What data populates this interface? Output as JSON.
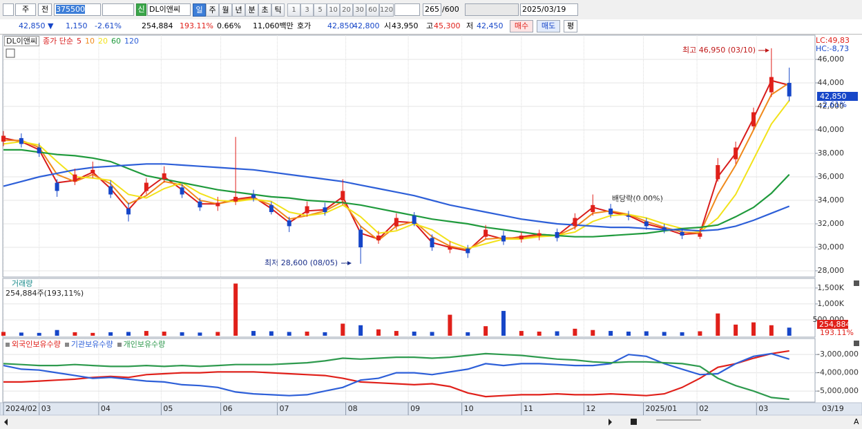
{
  "toolbar": {
    "market": "주",
    "prev": "전",
    "code": "375500",
    "badge": "신",
    "name": "DL이앤씨",
    "periods": [
      "일",
      "주",
      "월",
      "년",
      "분",
      "초",
      "틱"
    ],
    "intervals": [
      "1",
      "3",
      "5",
      "10",
      "20",
      "30",
      "60",
      "120"
    ],
    "count": "265",
    "max_count": "/600",
    "date": "2025/03/19"
  },
  "info_bar": {
    "price": "42,850 ▼",
    "change": "1,150",
    "change_rate": "-2.61%",
    "volume": "254,884",
    "volume_rate": "193.11%",
    "turnover": "0.66%",
    "amount": "11,060백만",
    "quote_label": "호가",
    "ask": "42,850",
    "bid": "42,800",
    "open_label": "시",
    "open": "43,950",
    "high_label": "고",
    "high": "45,300",
    "low_label": "저",
    "low": "42,450",
    "buy": "매수",
    "sell": "매도",
    "avg": "평"
  },
  "chart_data": [
    {
      "type": "candlestick",
      "title": "DL이앤씨",
      "ma_label": "종가 단순",
      "up_color": "#e0201a",
      "down_color": "#1646c8",
      "x": [
        0,
        6,
        12,
        18,
        24,
        30,
        36,
        42,
        48,
        54,
        60,
        66,
        72,
        78,
        84,
        90,
        96,
        102,
        108,
        114,
        120,
        126,
        132,
        138,
        144,
        150,
        156,
        162,
        168,
        174,
        180,
        186,
        192,
        198,
        204,
        210,
        216,
        222,
        228,
        234,
        240,
        246,
        252,
        258,
        264
      ],
      "open": [
        39000,
        39300,
        38500,
        35500,
        35600,
        36300,
        35200,
        33300,
        34800,
        35800,
        35100,
        33900,
        33500,
        33900,
        34500,
        33600,
        32300,
        32900,
        33400,
        34000,
        31500,
        30600,
        31800,
        32700,
        30800,
        29800,
        29900,
        30900,
        31000,
        30700,
        31000,
        31300,
        31800,
        33000,
        33300,
        32700,
        32200,
        31700,
        31300,
        30900,
        35800,
        37500,
        40300,
        43200,
        44000
      ],
      "high": [
        39900,
        39700,
        38900,
        35800,
        36700,
        37300,
        35700,
        33800,
        35900,
        36900,
        35400,
        34200,
        34300,
        39400,
        34900,
        33900,
        32600,
        33900,
        33800,
        35800,
        31800,
        31400,
        32900,
        33000,
        31100,
        30500,
        30200,
        31900,
        31400,
        31300,
        31500,
        31600,
        32900,
        34500,
        33700,
        33100,
        32500,
        32000,
        31600,
        31600,
        37600,
        39000,
        41900,
        46950,
        45300
      ],
      "low": [
        38600,
        38500,
        37700,
        34300,
        35300,
        35900,
        34200,
        32200,
        34500,
        35500,
        34200,
        33100,
        33100,
        33600,
        33900,
        32800,
        31300,
        32600,
        32700,
        33600,
        28600,
        30300,
        31500,
        31800,
        29700,
        29500,
        29100,
        30700,
        30200,
        30400,
        30600,
        30500,
        31500,
        32700,
        32500,
        32300,
        31500,
        31200,
        30700,
        30700,
        35600,
        37100,
        40000,
        42800,
        42450
      ],
      "close": [
        39500,
        38800,
        38000,
        34800,
        36200,
        36600,
        34500,
        32800,
        35500,
        36300,
        34500,
        33400,
        33800,
        34300,
        34200,
        33000,
        31800,
        33500,
        33000,
        34800,
        30000,
        31000,
        32500,
        32000,
        30000,
        30000,
        29500,
        31500,
        30500,
        31000,
        31200,
        30800,
        32500,
        33600,
        32800,
        32600,
        31800,
        31500,
        31000,
        31200,
        37000,
        38500,
        41500,
        44500,
        42850
      ],
      "series": [
        {
          "name": "5",
          "color": "#d81b1b",
          "values": [
            39300,
            39000,
            38300,
            35500,
            35700,
            36400,
            35000,
            33200,
            34900,
            36000,
            34900,
            33700,
            33700,
            34100,
            34300,
            33300,
            32100,
            33100,
            33200,
            34300,
            31200,
            30700,
            32200,
            32100,
            30400,
            30000,
            29700,
            31100,
            30700,
            30900,
            31100,
            31000,
            32200,
            33400,
            33000,
            32700,
            32000,
            31600,
            31100,
            31200,
            36000,
            38000,
            41000,
            44200,
            43800
          ]
        },
        {
          "name": "10",
          "color": "#f08a1c",
          "values": [
            39100,
            39100,
            38500,
            36200,
            35600,
            36200,
            35400,
            33700,
            34400,
            35600,
            35300,
            34000,
            33700,
            34000,
            34200,
            33600,
            32400,
            32700,
            33100,
            33900,
            31800,
            30600,
            31800,
            32200,
            30900,
            30100,
            29800,
            30700,
            30800,
            30800,
            31000,
            31000,
            31700,
            32900,
            33100,
            32800,
            32200,
            31700,
            31300,
            31200,
            34500,
            37000,
            40000,
            43000,
            44000
          ]
        },
        {
          "name": "20",
          "color": "#f2e21a",
          "values": [
            38800,
            39000,
            38700,
            37300,
            36000,
            35900,
            35700,
            34500,
            34200,
            35000,
            35500,
            34600,
            34000,
            33900,
            34100,
            33900,
            33000,
            32700,
            32900,
            33600,
            32600,
            31200,
            31400,
            32000,
            31500,
            30500,
            29900,
            30300,
            30700,
            30700,
            30900,
            31000,
            31300,
            32200,
            32700,
            32800,
            32500,
            32000,
            31600,
            31300,
            32500,
            34500,
            37500,
            40500,
            42500
          ]
        },
        {
          "name": "60",
          "color": "#1f9a3c",
          "values": [
            38300,
            38300,
            38100,
            37900,
            37800,
            37600,
            37300,
            36700,
            36100,
            35800,
            35500,
            35200,
            34900,
            34700,
            34500,
            34300,
            34200,
            34000,
            33900,
            33800,
            33600,
            33300,
            33000,
            32700,
            32400,
            32200,
            32000,
            31700,
            31500,
            31300,
            31100,
            31000,
            30900,
            30900,
            31000,
            31100,
            31200,
            31400,
            31600,
            31700,
            31900,
            32600,
            33400,
            34600,
            36200
          ]
        },
        {
          "name": "120",
          "color": "#2d5fd8",
          "values": [
            35200,
            35600,
            36000,
            36300,
            36600,
            36800,
            36900,
            37000,
            37100,
            37100,
            37000,
            36900,
            36800,
            36700,
            36600,
            36400,
            36200,
            36000,
            35800,
            35600,
            35300,
            35000,
            34700,
            34400,
            34000,
            33600,
            33300,
            33000,
            32700,
            32400,
            32200,
            32000,
            31900,
            31800,
            31700,
            31700,
            31600,
            31500,
            31500,
            31400,
            31500,
            31800,
            32300,
            32900,
            33500
          ]
        }
      ],
      "xlim": [
        0,
        265
      ],
      "xticks": [
        {
          "value": 0,
          "label": "2024/02"
        },
        {
          "value": 12,
          "label": "03"
        },
        {
          "value": 32,
          "label": "04"
        },
        {
          "value": 53,
          "label": "05"
        },
        {
          "value": 73,
          "label": "06"
        },
        {
          "value": 92,
          "label": "07"
        },
        {
          "value": 115,
          "label": "08"
        },
        {
          "value": 136,
          "label": "09"
        },
        {
          "value": 154,
          "label": "10"
        },
        {
          "value": 174,
          "label": "11"
        },
        {
          "value": 195,
          "label": "12"
        },
        {
          "value": 215,
          "label": "2025/01"
        },
        {
          "value": 233,
          "label": "02"
        },
        {
          "value": 253,
          "label": "03"
        }
      ],
      "ylim": [
        27530,
        48000
      ],
      "yticks": [
        {
          "value": 28000,
          "label": "28,000"
        },
        {
          "value": 30000,
          "label": "30,000"
        },
        {
          "value": 32000,
          "label": "32,000"
        },
        {
          "value": 34000,
          "label": "34,000"
        },
        {
          "value": 36000,
          "label": "36,000"
        },
        {
          "value": 38000,
          "label": "38,000"
        },
        {
          "value": 40000,
          "label": "40,000"
        },
        {
          "value": 42000,
          "label": "42,000"
        },
        {
          "value": 44000,
          "label": "44,000"
        },
        {
          "value": 46000,
          "label": "46,000"
        }
      ],
      "grid": true,
      "annotations": {
        "high": "최고 46,950 (03/10)",
        "low": "최저 28,600 (08/05)",
        "dividend": "배당락(0.00%)"
      },
      "axis_notes": {
        "lc": "LC:49,83",
        "hc": "HC:-8,73",
        "last_price": "42,850",
        "last_change": "-2.61%"
      }
    },
    {
      "type": "bar",
      "title": "거래량",
      "subtitle": "254,884주(193,11%)",
      "up_color": "#e0201a",
      "down_color": "#1646c8",
      "x": [
        0,
        6,
        12,
        18,
        24,
        30,
        36,
        42,
        48,
        54,
        60,
        66,
        72,
        78,
        84,
        90,
        96,
        102,
        108,
        114,
        120,
        126,
        132,
        138,
        144,
        150,
        156,
        162,
        168,
        174,
        180,
        186,
        192,
        198,
        204,
        210,
        216,
        222,
        228,
        234,
        240,
        246,
        252,
        258,
        264
      ],
      "values": [
        120000,
        100000,
        90000,
        180000,
        110000,
        90000,
        110000,
        120000,
        150000,
        130000,
        110000,
        100000,
        120000,
        1640000,
        150000,
        140000,
        120000,
        130000,
        110000,
        380000,
        330000,
        200000,
        150000,
        130000,
        120000,
        660000,
        110000,
        300000,
        780000,
        150000,
        130000,
        140000,
        220000,
        180000,
        150000,
        130000,
        140000,
        120000,
        110000,
        140000,
        700000,
        350000,
        420000,
        330000,
        254884
      ],
      "xlim": [
        0,
        265
      ],
      "ylim": [
        0,
        1780000
      ],
      "yticks": [
        {
          "value": 500000,
          "label": "500,000"
        },
        {
          "value": 1000000,
          "label": "1,000K"
        },
        {
          "value": 1500000,
          "label": "1,500K"
        }
      ],
      "grid": true,
      "axis_notes": {
        "last_volume": "254,884",
        "last_rate": "193.11%"
      }
    },
    {
      "type": "line",
      "x": [
        0,
        6,
        12,
        18,
        24,
        30,
        36,
        42,
        48,
        54,
        60,
        66,
        72,
        78,
        84,
        90,
        96,
        102,
        108,
        114,
        120,
        126,
        132,
        138,
        144,
        150,
        156,
        162,
        168,
        174,
        180,
        186,
        192,
        198,
        204,
        210,
        216,
        222,
        228,
        234,
        240,
        246,
        252,
        258,
        264
      ],
      "series": [
        {
          "name": "외국인보유수량",
          "color": "#e0201a",
          "values": [
            -4500000,
            -4500000,
            -4450000,
            -4400000,
            -4350000,
            -4250000,
            -4200000,
            -4250000,
            -4100000,
            -4050000,
            -4000000,
            -4000000,
            -3950000,
            -3950000,
            -3950000,
            -4000000,
            -4050000,
            -4100000,
            -4150000,
            -4300000,
            -4500000,
            -4550000,
            -4600000,
            -4650000,
            -4600000,
            -4750000,
            -5100000,
            -5300000,
            -5250000,
            -5200000,
            -5200000,
            -5150000,
            -5200000,
            -5200000,
            -5150000,
            -5200000,
            -5250000,
            -5150000,
            -4800000,
            -4300000,
            -3700000,
            -3500000,
            -3200000,
            -2950000,
            -2800000
          ]
        },
        {
          "name": "기관보유수량",
          "color": "#2d5fd8",
          "values": [
            -3600000,
            -3800000,
            -3850000,
            -4000000,
            -4150000,
            -4300000,
            -4250000,
            -4350000,
            -4450000,
            -4500000,
            -4650000,
            -4700000,
            -4800000,
            -5050000,
            -5150000,
            -5200000,
            -5250000,
            -5200000,
            -5000000,
            -4800000,
            -4400000,
            -4300000,
            -4000000,
            -4000000,
            -4100000,
            -3950000,
            -3800000,
            -3500000,
            -3600000,
            -3500000,
            -3500000,
            -3550000,
            -3600000,
            -3600000,
            -3500000,
            -3000000,
            -3100000,
            -3500000,
            -3800000,
            -4100000,
            -4050000,
            -3500000,
            -3100000,
            -2950000,
            -3250000
          ]
        },
        {
          "name": "개인보유수량",
          "color": "#2e9a4e",
          "values": [
            -3500000,
            -3550000,
            -3600000,
            -3600000,
            -3550000,
            -3600000,
            -3650000,
            -3650000,
            -3600000,
            -3650000,
            -3600000,
            -3650000,
            -3600000,
            -3550000,
            -3550000,
            -3550000,
            -3500000,
            -3450000,
            -3350000,
            -3200000,
            -3250000,
            -3200000,
            -3150000,
            -3150000,
            -3200000,
            -3150000,
            -3050000,
            -2950000,
            -3000000,
            -3050000,
            -3150000,
            -3250000,
            -3300000,
            -3400000,
            -3450000,
            -3400000,
            -3400000,
            -3450000,
            -3500000,
            -3650000,
            -4300000,
            -4700000,
            -5000000,
            -5350000,
            -5450000
          ]
        }
      ],
      "xlim": [
        0,
        265
      ],
      "ylim": [
        -5600000,
        -2200000
      ],
      "yticks": [
        {
          "value": -5000000,
          "label": "-5,000,000"
        },
        {
          "value": -4000000,
          "label": "-4,000,000"
        },
        {
          "value": -3000000,
          "label": "-3,000,000"
        }
      ],
      "grid": true
    }
  ],
  "x_axis_end_label": "03/19"
}
